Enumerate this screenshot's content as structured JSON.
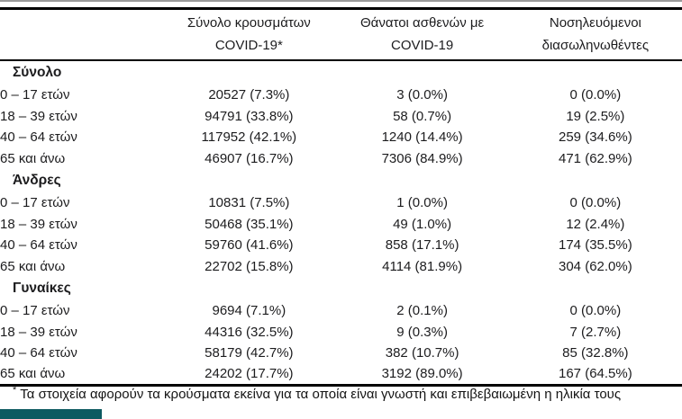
{
  "table": {
    "columns": [
      {
        "line1": "Σύνολο κρουσμάτων",
        "line2": "COVID-19*"
      },
      {
        "line1": "Θάνατοι ασθενών με",
        "line2": "COVID-19"
      },
      {
        "line1": "Νοσηλευόμενοι",
        "line2": "διασωληνωθέντες"
      }
    ],
    "sections": [
      {
        "label": "Σύνολο",
        "rows": [
          {
            "label": "0 – 17 ετών",
            "cases": "20527 (7.3%)",
            "deaths": "3 (0.0%)",
            "intubated": "0 (0.0%)"
          },
          {
            "label": "18 – 39 ετών",
            "cases": "94791 (33.8%)",
            "deaths": "58 (0.7%)",
            "intubated": "19 (2.5%)"
          },
          {
            "label": "40 – 64 ετών",
            "cases": "117952 (42.1%)",
            "deaths": "1240 (14.4%)",
            "intubated": "259 (34.6%)"
          },
          {
            "label": "65 και άνω",
            "cases": "46907 (16.7%)",
            "deaths": "7306 (84.9%)",
            "intubated": "471 (62.9%)"
          }
        ]
      },
      {
        "label": "Άνδρες",
        "rows": [
          {
            "label": "0 – 17 ετών",
            "cases": "10831 (7.5%)",
            "deaths": "1 (0.0%)",
            "intubated": "0 (0.0%)"
          },
          {
            "label": "18 – 39 ετών",
            "cases": "50468 (35.1%)",
            "deaths": "49 (1.0%)",
            "intubated": "12 (2.4%)"
          },
          {
            "label": "40 – 64 ετών",
            "cases": "59760 (41.6%)",
            "deaths": "858 (17.1%)",
            "intubated": "174 (35.5%)"
          },
          {
            "label": "65 και άνω",
            "cases": "22702 (15.8%)",
            "deaths": "4114 (81.9%)",
            "intubated": "304 (62.0%)"
          }
        ]
      },
      {
        "label": "Γυναίκες",
        "rows": [
          {
            "label": "0 – 17 ετών",
            "cases": "9694 (7.1%)",
            "deaths": "2 (0.1%)",
            "intubated": "0 (0.0%)"
          },
          {
            "label": "18 – 39 ετών",
            "cases": "44316 (32.5%)",
            "deaths": "9 (0.3%)",
            "intubated": "7 (2.7%)"
          },
          {
            "label": "40 – 64 ετών",
            "cases": "58179 (42.7%)",
            "deaths": "382 (10.7%)",
            "intubated": "85 (32.8%)"
          },
          {
            "label": "65 και άνω",
            "cases": "24202 (17.7%)",
            "deaths": "3192 (89.0%)",
            "intubated": "167 (64.5%)"
          }
        ]
      }
    ]
  },
  "footnote": {
    "marker": "*",
    "text": "Τα στοιχεία αφορούν τα κρούσματα εκείνα για τα οποία είναι γνωστή και επιβεβαιωμένη η ηλικία τους"
  },
  "colors": {
    "rule_black": "#000000",
    "rule_gray": "#9a9a9a",
    "teal_bar": "#0d5a61",
    "text": "#1c1c1e"
  }
}
